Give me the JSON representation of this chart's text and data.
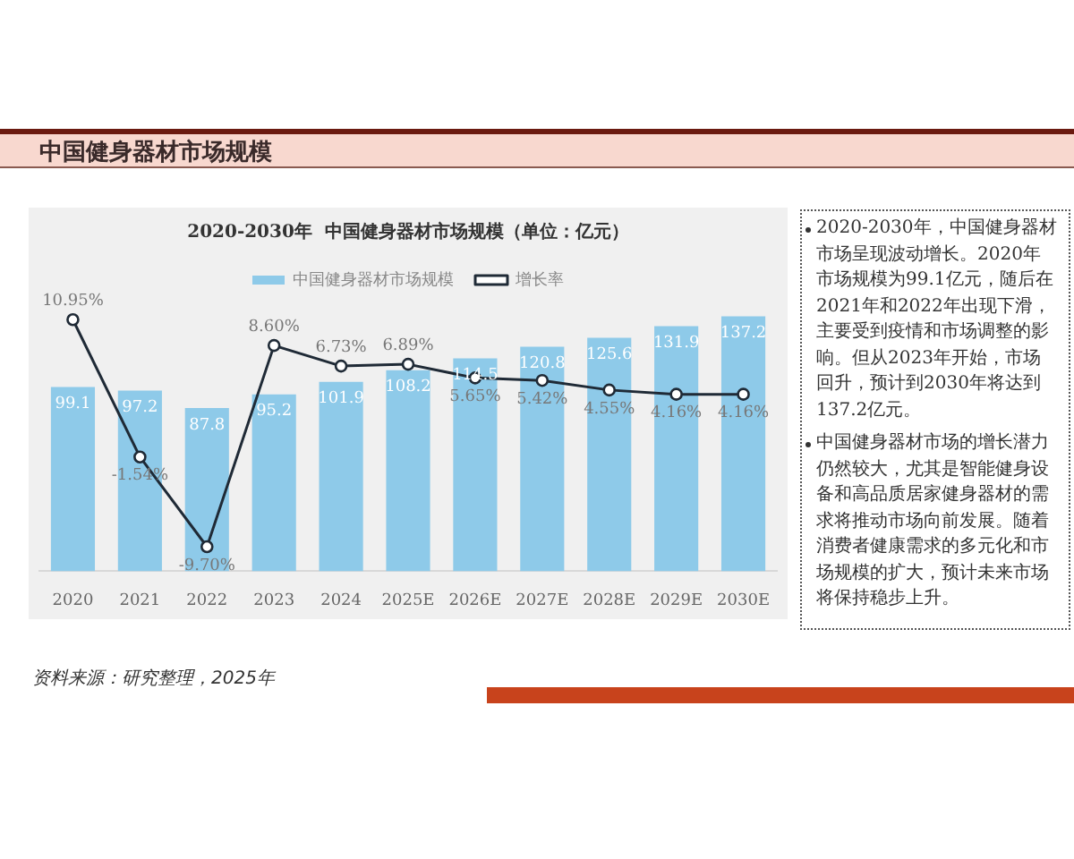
{
  "chart_data": {
    "type": "bar",
    "title": "2020-2030年  中国健身器材市场规模（单位：亿元）",
    "categories": [
      "2020",
      "2021",
      "2022",
      "2023",
      "2024",
      "2025E",
      "2026E",
      "2027E",
      "2028E",
      "2029E",
      "2030E"
    ],
    "series": [
      {
        "name": "中国健身器材市场规模",
        "color": "#8ecae9",
        "values": [
          99.1,
          97.2,
          87.8,
          95.2,
          101.9,
          108.2,
          114.5,
          120.8,
          125.6,
          131.9,
          137.2
        ]
      },
      {
        "name": "增长率",
        "type": "line",
        "axis": "y2",
        "color": "#1f2a36",
        "values": [
          10.95,
          -1.54,
          -9.7,
          8.6,
          6.73,
          6.89,
          5.65,
          5.42,
          4.55,
          4.16,
          4.16
        ],
        "value_labels": [
          "10.95%",
          "-1.54%",
          "-9.70%",
          "8.60%",
          "6.73%",
          "6.89%",
          "5.65%",
          "5.42%",
          "4.55%",
          "4.16%",
          "4.16%"
        ]
      }
    ],
    "data_labels": true,
    "legend": "top",
    "marker": "circle",
    "line_style": "solid",
    "grid": false,
    "tick_labels": "x",
    "annotations": [
      "中国健身器材市场规模",
      "资料来源：研究整理，2025年",
      "2020-2030年，中国健身器材市场呈现波动增长。2020年市场规模为99.1亿元，随后在2021年和2022年出现下滑，主要受到疫情和市场调整的影响。但从2023年开始，市场回升，预计到2030年将达到137.2亿元。",
      "中国健身器材市场的增长潜力仍然较大，尤其是智能健身设备和高品质居家健身器材的需求将推动市场向前发展。随着消费者健康需求的多元化和市场规模的扩大，预计未来市场将保持稳步上升。"
    ]
  }
}
